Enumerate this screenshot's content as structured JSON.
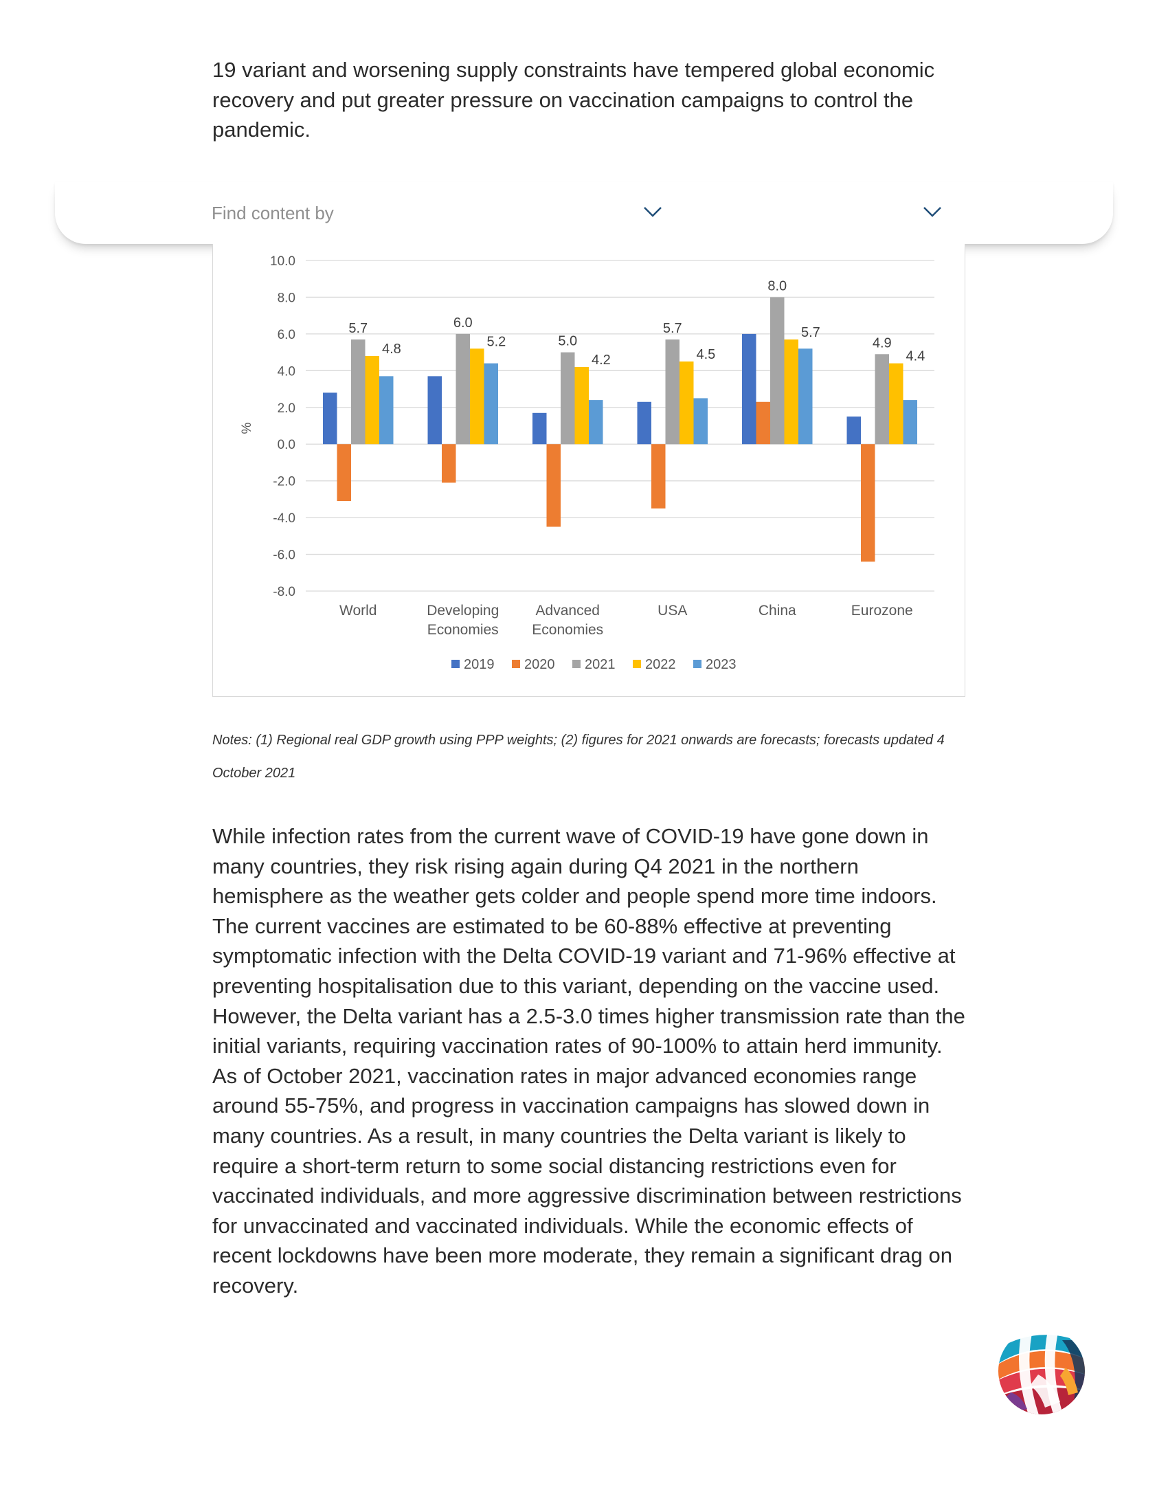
{
  "intro_text": "19 variant and worsening supply constraints have tempered global economic recovery and put greater pressure on vaccination campaigns to control the pandemic.",
  "find_bar": {
    "label": "Find content by",
    "dropdown_icon": "chevron-down-icon"
  },
  "chart_data": {
    "type": "bar",
    "categories": [
      "World",
      "Developing Economies",
      "Advanced Economies",
      "USA",
      "China",
      "Eurozone"
    ],
    "ylabel": "%",
    "ylim": [
      -8.0,
      10.0
    ],
    "yticks": [
      "10.0",
      "8.0",
      "6.0",
      "4.0",
      "2.0",
      "0.0",
      "-2.0",
      "-4.0",
      "-6.0",
      "-8.0"
    ],
    "grid": true,
    "legend_position": "bottom",
    "series": [
      {
        "name": "2019",
        "color": "#4472c4",
        "values": [
          2.8,
          3.7,
          1.7,
          2.3,
          6.0,
          1.5
        ]
      },
      {
        "name": "2020",
        "color": "#ed7d31",
        "values": [
          -3.1,
          -2.1,
          -4.5,
          -3.5,
          2.3,
          -6.4
        ]
      },
      {
        "name": "2021",
        "color": "#a5a5a5",
        "values": [
          5.7,
          6.0,
          5.0,
          5.7,
          8.0,
          4.9
        ],
        "labels": [
          "5.7",
          "6.0",
          "5.0",
          "5.7",
          "8.0",
          "4.9"
        ]
      },
      {
        "name": "2022",
        "color": "#ffc000",
        "values": [
          4.8,
          5.2,
          4.2,
          4.5,
          5.7,
          4.4
        ],
        "labels": [
          "4.8",
          "5.2",
          "4.2",
          "4.5",
          "5.7",
          "4.4"
        ]
      },
      {
        "name": "2023",
        "color": "#5b9bd5",
        "values": [
          3.7,
          4.4,
          2.4,
          2.5,
          5.2,
          2.4
        ]
      }
    ]
  },
  "notes": "Notes: (1) Regional real GDP growth using PPP weights; (2) figures for 2021 onwards are forecasts; forecasts updated 4 October 2021",
  "body_text": "While infection rates from the current wave of COVID-19 have gone down in many countries, they risk rising again during Q4 2021 in the northern hemisphere as the weather gets colder and people spend more time indoors. The current vaccines are estimated to be 60-88% effective at preventing symptomatic infection with the Delta COVID-19 variant and 71-96% effective at preventing hospitalisation due to this variant, depending on the vaccine used. However, the Delta variant has a 2.5-3.0 times higher transmission rate than the initial variants, requiring vaccination rates of 90-100% to attain herd immunity. As of October 2021, vaccination rates in major advanced economies range around 55-75%, and progress in vaccination campaigns has slowed down in many countries. As a result, in many countries the Delta variant is likely to require a short-term return to some social distancing restrictions even for vaccinated individuals, and more aggressive discrimination between restrictions for unvaccinated and vaccinated individuals. While the economic effects of recent lockdowns have been more moderate, they remain a significant drag on recovery.",
  "logo_icon": "globe-logo-icon"
}
